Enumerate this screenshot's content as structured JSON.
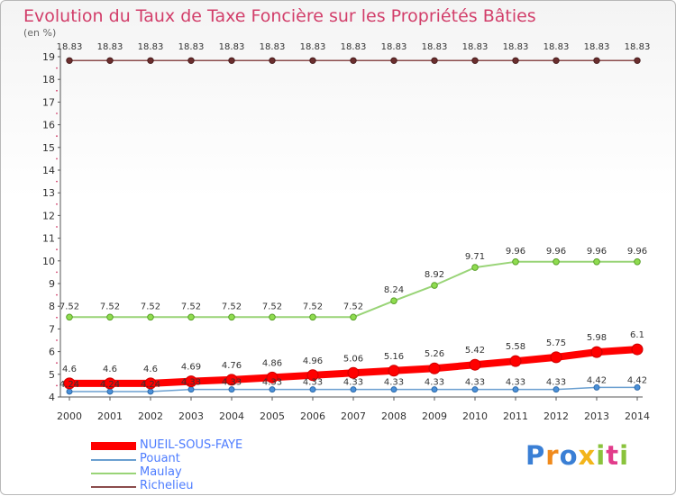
{
  "title": "Evolution du Taux de Taxe Foncière sur les Propriétés Bâties",
  "unit_label": "(en %)",
  "logo": {
    "text": "Proxiti"
  },
  "colors": {
    "title": "#d23e6a",
    "legend_text": "#4d7cff"
  },
  "chart_data": {
    "type": "line",
    "title": "Evolution du Taux de Taxe Foncière sur les Propriétés Bâties",
    "ylabel": "(en %)",
    "xlabel": "",
    "ylim": [
      4,
      19
    ],
    "yticks": [
      4,
      5,
      6,
      7,
      8,
      9,
      10,
      11,
      12,
      13,
      14,
      15,
      16,
      17,
      18,
      19
    ],
    "x": [
      "2000",
      "2001",
      "2002",
      "2003",
      "2004",
      "2005",
      "2006",
      "2007",
      "2008",
      "2009",
      "2010",
      "2011",
      "2012",
      "2013",
      "2014"
    ],
    "grid": false,
    "legend_position": "bottom-left",
    "series": [
      {
        "name": "NUEIL-SOUS-FAYE",
        "color": "#ff0000",
        "values": [
          4.6,
          4.6,
          4.6,
          4.69,
          4.76,
          4.86,
          4.96,
          5.06,
          5.16,
          5.26,
          5.42,
          5.58,
          5.75,
          5.98,
          6.1
        ]
      },
      {
        "name": "Pouant",
        "color": "#6a9fd0",
        "values": [
          4.24,
          4.24,
          4.24,
          4.33,
          4.33,
          4.33,
          4.33,
          4.33,
          4.33,
          4.33,
          4.33,
          4.33,
          4.33,
          4.42,
          4.42
        ]
      },
      {
        "name": "Maulay",
        "color": "#99d477",
        "values": [
          7.52,
          7.52,
          7.52,
          7.52,
          7.52,
          7.52,
          7.52,
          7.52,
          8.24,
          8.92,
          9.71,
          9.96,
          9.96,
          9.96,
          9.96
        ]
      },
      {
        "name": "Richelieu",
        "color": "#8b4c4c",
        "values": [
          18.83,
          18.83,
          18.83,
          18.83,
          18.83,
          18.83,
          18.83,
          18.83,
          18.83,
          18.83,
          18.83,
          18.83,
          18.83,
          18.83,
          18.83
        ]
      }
    ],
    "data_labels": {
      "top_row": [
        "18.83",
        "18.83",
        "18.83",
        "18.83",
        "18.83",
        "18.83",
        "18.83",
        "18.83",
        "18.83",
        "18.83",
        "18.83",
        "18.83",
        "18.83",
        "18.83",
        "18.83"
      ],
      "Maulay": [
        "7.52",
        "7.52",
        "7.52",
        "7.52",
        "7.52",
        "7.52",
        "7.52",
        "7.52",
        "8.24",
        "8.92",
        "9.71",
        "9.96",
        "9.96",
        "9.96",
        "9.96"
      ],
      "NUEIL-SOUS-FAYE": [
        "4.6",
        "4.6",
        "4.6",
        "4.69",
        "4.76",
        "4.86",
        "4.96",
        "5.06",
        "5.16",
        "5.26",
        "5.42",
        "5.58",
        "5.75",
        "5.98",
        "6.1"
      ],
      "Pouant": [
        "4.24",
        "4.24",
        "4.24",
        "4.33",
        "4.33",
        "4.33",
        "4.33",
        "4.33",
        "4.33",
        "4.33",
        "4.33",
        "4.33",
        "4.33",
        "4.42",
        "4.42"
      ]
    }
  }
}
